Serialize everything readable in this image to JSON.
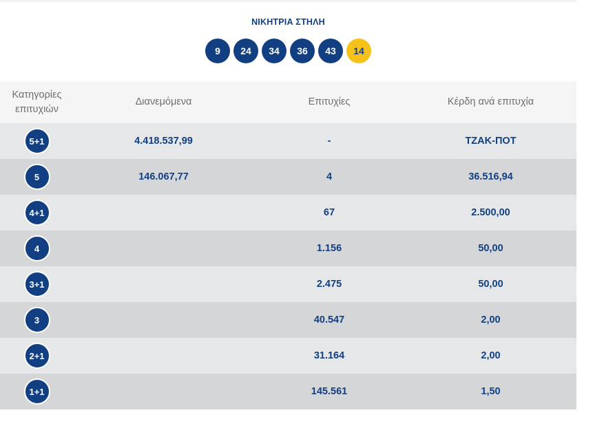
{
  "winning_column": {
    "title": "ΝΙΚΗΤΡΙΑ ΣΤΗΛΗ",
    "numbers": [
      "9",
      "24",
      "34",
      "36",
      "43"
    ],
    "joker": "14"
  },
  "table": {
    "headers": {
      "category": "Κατηγορίες επιτυχιών",
      "distributed": "Διανεμόμενα",
      "winners": "Επιτυχίες",
      "prize_per_winner": "Κέρδη ανά επιτυχία"
    },
    "rows": [
      {
        "category": "5+1",
        "distributed": "4.418.537,99",
        "winners": "-",
        "prize": "ΤΖΑΚ-ΠΟΤ"
      },
      {
        "category": "5",
        "distributed": "146.067,77",
        "winners": "4",
        "prize": "36.516,94"
      },
      {
        "category": "4+1",
        "distributed": "",
        "winners": "67",
        "prize": "2.500,00"
      },
      {
        "category": "4",
        "distributed": "",
        "winners": "1.156",
        "prize": "50,00"
      },
      {
        "category": "3+1",
        "distributed": "",
        "winners": "2.475",
        "prize": "50,00"
      },
      {
        "category": "3",
        "distributed": "",
        "winners": "40.547",
        "prize": "2,00"
      },
      {
        "category": "2+1",
        "distributed": "",
        "winners": "31.164",
        "prize": "2,00"
      },
      {
        "category": "1+1",
        "distributed": "",
        "winners": "145.561",
        "prize": "1,50"
      }
    ]
  },
  "colors": {
    "brand_blue": "#123f82",
    "joker_yellow": "#f6c21a",
    "row_light": "#e6e7e9",
    "row_dark": "#d5d6d8",
    "header_bg": "#f5f5f6"
  }
}
